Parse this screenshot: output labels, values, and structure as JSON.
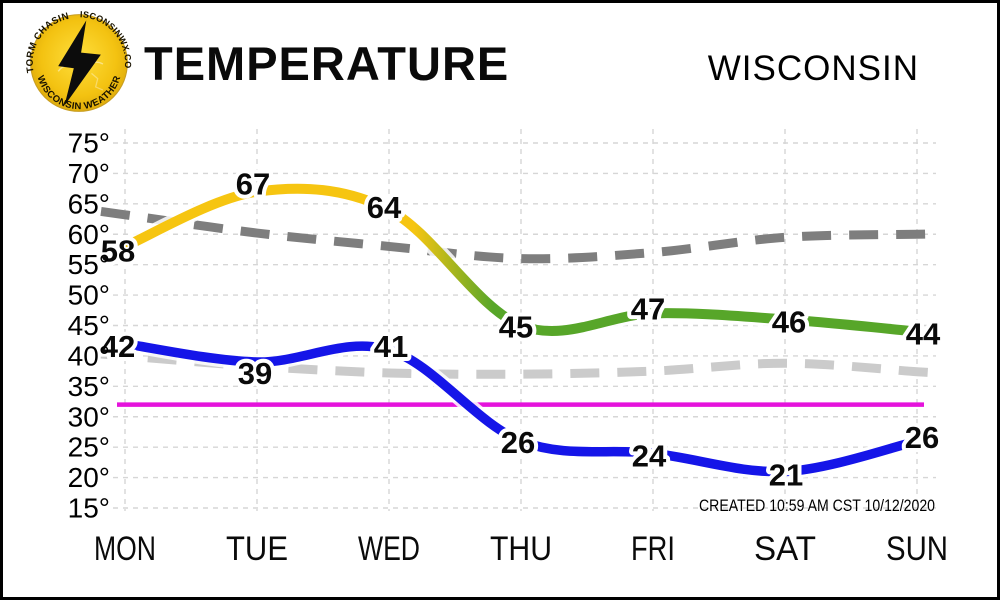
{
  "header": {
    "title": "TEMPERATURE",
    "region": "WISCONSIN",
    "logo": {
      "arc_top_left": "STORM CHASING",
      "arc_top_right": "WISCONSINWX.COM",
      "arc_bottom": "WISCONSIN WEATHER"
    }
  },
  "footnote": "CREATED 10:59 AM CST 10/12/2020",
  "colors": {
    "high_yellow": "#f6c511",
    "high_green": "#57a629",
    "low_blue": "#1515e8",
    "normal_high_gray": "#7e7e7e",
    "normal_low_gray": "#cbcbcb",
    "freezing_magenta": "#e513dc",
    "grid": "#d6d6d6",
    "logo_gold": "#f3c211"
  },
  "chart_data": {
    "type": "line",
    "title": "TEMPERATURE",
    "categories": [
      "MON",
      "TUE",
      "WED",
      "THU",
      "FRI",
      "SAT",
      "SUN"
    ],
    "series": [
      {
        "name": "high",
        "values": [
          58,
          67,
          64,
          45,
          47,
          46,
          44
        ],
        "style": "solid",
        "color_start": "#f6c511",
        "color_end": "#57a629",
        "labeled": true
      },
      {
        "name": "low",
        "values": [
          42,
          39,
          41,
          26,
          24,
          21,
          26
        ],
        "style": "solid",
        "color": "#1515e8",
        "labeled": true
      },
      {
        "name": "normal-high",
        "values": [
          63.2,
          60.2,
          58,
          56,
          57,
          59.5,
          60
        ],
        "style": "dashed",
        "color": "#7e7e7e",
        "labeled": false
      },
      {
        "name": "normal-low",
        "values": [
          40,
          38.3,
          37.2,
          37,
          37.5,
          38.8,
          37.4
        ],
        "style": "dashed",
        "color": "#cbcbcb",
        "labeled": false
      }
    ],
    "reference_line": {
      "value": 32,
      "color": "#e513dc"
    },
    "ylim": [
      15,
      75
    ],
    "ytick_step": 5,
    "ytick_suffix": "°",
    "grid": true,
    "legend": false
  }
}
